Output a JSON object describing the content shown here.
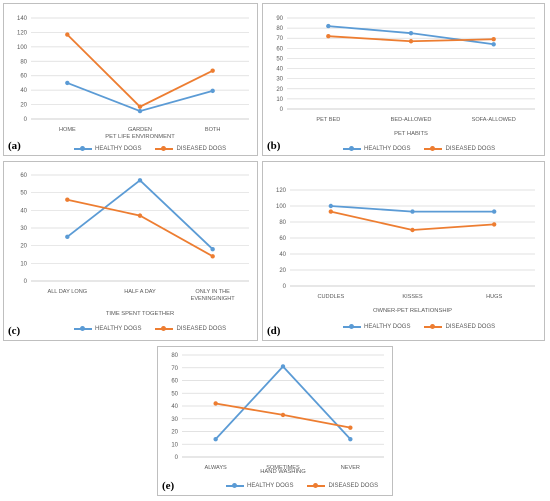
{
  "colors": {
    "healthy": "#5B9BD5",
    "diseased": "#ED7D31",
    "grid": "#d9d9d9",
    "axis": "#bfbfbf",
    "text": "#595959"
  },
  "chart_data": [
    {
      "type": "line",
      "panel_label": "(a)",
      "categories": [
        "HOME",
        "GARDEN",
        "BOTH"
      ],
      "xlabel": "PET LIFE ENVIRONMENT",
      "ylabel": "",
      "ylim": [
        0,
        140
      ],
      "yticks": [
        0,
        20,
        40,
        60,
        80,
        100,
        120,
        140
      ],
      "grid": true,
      "legend": "bottom",
      "series": [
        {
          "name": "HEALTHY DOGS",
          "values": [
            50,
            11,
            39
          ]
        },
        {
          "name": "DISEASED DOGS",
          "values": [
            117,
            17,
            67
          ]
        }
      ]
    },
    {
      "type": "line",
      "panel_label": "(b)",
      "categories": [
        "PET BED",
        "BED-ALLOWED",
        "SOFA-ALLOWED"
      ],
      "xlabel": "PET HABITS",
      "ylabel": "",
      "ylim": [
        0,
        90
      ],
      "yticks": [
        0,
        10,
        20,
        30,
        40,
        50,
        60,
        70,
        80,
        90
      ],
      "grid": true,
      "legend": "bottom",
      "series": [
        {
          "name": "HEALTHY DOGS",
          "values": [
            82,
            75,
            64
          ]
        },
        {
          "name": "DISEASED DOGS",
          "values": [
            72,
            67,
            69
          ]
        }
      ]
    },
    {
      "type": "line",
      "panel_label": "(c)",
      "categories": [
        "ALL DAY LONG",
        "HALF A DAY",
        "ONLY IN THE|EVENING/NIGHT"
      ],
      "xlabel": "TIME SPENT TOGETHER",
      "ylabel": "",
      "ylim": [
        0,
        60
      ],
      "yticks": [
        0,
        10,
        20,
        30,
        40,
        50,
        60
      ],
      "grid": true,
      "legend": "bottom",
      "series": [
        {
          "name": "HEALTHY DOGS",
          "values": [
            25,
            57,
            18
          ]
        },
        {
          "name": "DISEASED DOGS",
          "values": [
            46,
            37,
            14
          ]
        }
      ]
    },
    {
      "type": "line",
      "panel_label": "(d)",
      "categories": [
        "CUDDLES",
        "KISSES",
        "HUGS"
      ],
      "xlabel": "OWNER-PET RELATIONSHIP",
      "ylabel": "",
      "ylim": [
        0,
        120
      ],
      "yticks": [
        0,
        20,
        40,
        60,
        80,
        100,
        120
      ],
      "grid": true,
      "legend": "bottom",
      "series": [
        {
          "name": "HEALTHY DOGS",
          "values": [
            100,
            93,
            93
          ]
        },
        {
          "name": "DISEASED DOGS",
          "values": [
            93,
            70,
            77
          ]
        }
      ]
    },
    {
      "type": "line",
      "panel_label": "(e)",
      "categories": [
        "ALWAYS",
        "SOMETIMES",
        "NEVER"
      ],
      "xlabel": "HAND WASHING",
      "ylabel": "",
      "ylim": [
        0,
        80
      ],
      "yticks": [
        0,
        10,
        20,
        30,
        40,
        50,
        60,
        70,
        80
      ],
      "grid": true,
      "legend": "bottom",
      "series": [
        {
          "name": "HEALTHY DOGS",
          "values": [
            14,
            71,
            14
          ]
        },
        {
          "name": "DISEASED DOGS",
          "values": [
            42,
            33,
            23
          ]
        }
      ]
    }
  ]
}
